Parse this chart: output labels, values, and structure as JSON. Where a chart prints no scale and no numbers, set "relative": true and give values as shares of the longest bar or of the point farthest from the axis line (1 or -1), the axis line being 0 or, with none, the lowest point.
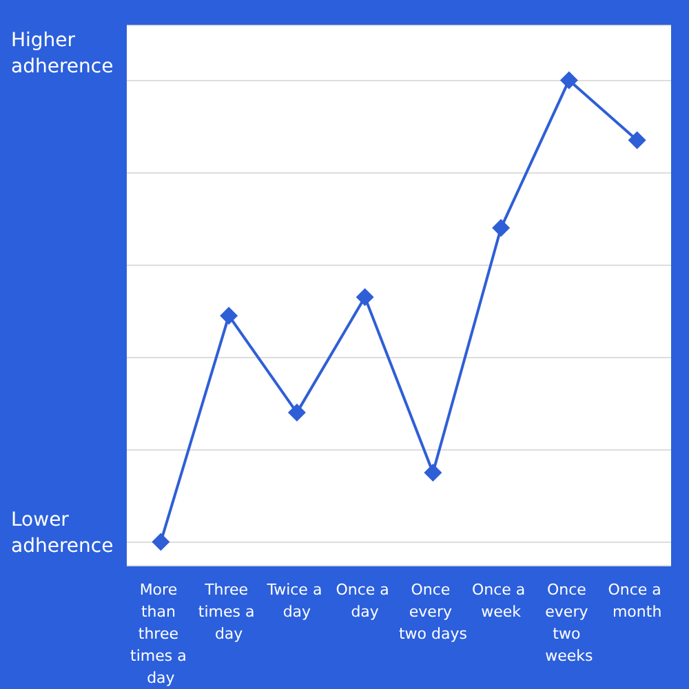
{
  "chart_data": {
    "type": "line",
    "relative": true,
    "categories": [
      "More than three times a day",
      "Three times a day",
      "Twice a day",
      "Once a day",
      "Once every two days",
      "Once a week",
      "Once every two weeks",
      "Once a month"
    ],
    "series": [
      {
        "color": "#2f5fd6",
        "values": [
          0,
          0.49,
          0.28,
          0.53,
          0.15,
          0.68,
          1,
          0.87
        ]
      }
    ],
    "annotations": [
      "Higher adherence",
      "Lower adherence"
    ],
    "grid": "y",
    "marker": "diamond",
    "line_style": "solid"
  }
}
